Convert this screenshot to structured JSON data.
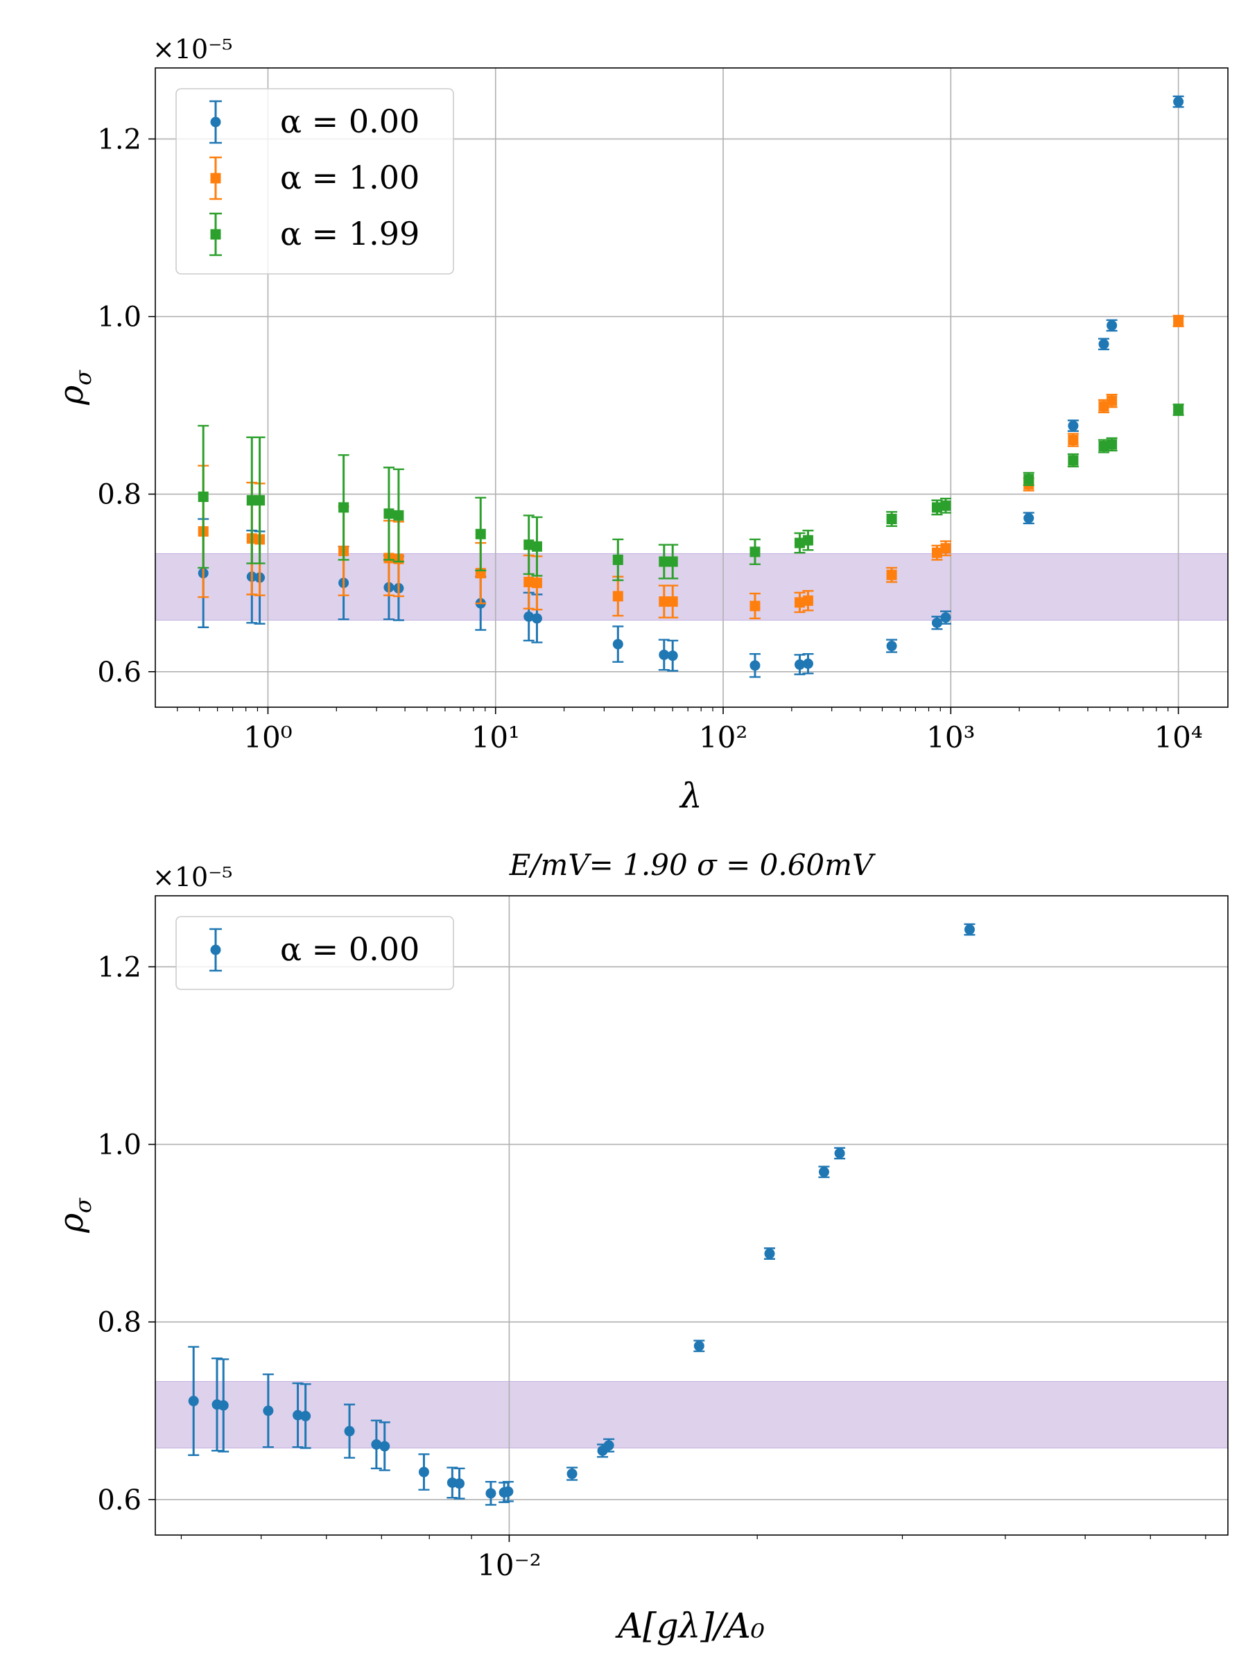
{
  "figure": {
    "panels": [
      {
        "id": "top",
        "multiplier_label": "×10⁻⁵",
        "ylabel_main": "ρ",
        "ylabel_sub": "σ",
        "xlabel": "λ",
        "title": ""
      },
      {
        "id": "bottom",
        "multiplier_label": "×10⁻⁵",
        "ylabel_main": "ρ",
        "ylabel_sub": "σ",
        "xlabel": "A[gλ]/A₀",
        "title": "E/mV= 1.90 σ = 0.60mV"
      }
    ]
  },
  "chart_data": [
    {
      "type": "scatter",
      "x_scale": "log",
      "xlim": [
        0.32,
        16500
      ],
      "ylim": [
        0.56,
        1.28
      ],
      "y_multiplier": "1e-5",
      "x_ticks": [
        {
          "value": 1,
          "label": "10⁰"
        },
        {
          "value": 10,
          "label": "10¹"
        },
        {
          "value": 100,
          "label": "10²"
        },
        {
          "value": 1000,
          "label": "10³"
        },
        {
          "value": 10000,
          "label": "10⁴"
        }
      ],
      "y_ticks": [
        {
          "value": 0.6,
          "label": "0.6"
        },
        {
          "value": 0.8,
          "label": "0.8"
        },
        {
          "value": 1.0,
          "label": "1.0"
        },
        {
          "value": 1.2,
          "label": "1.2"
        }
      ],
      "grid": true,
      "legend_position": "top-left",
      "band": {
        "y0": 0.658,
        "y1": 0.733,
        "color": "#c7b3df"
      },
      "series": [
        {
          "name": "α = 0.00",
          "marker": "circle",
          "color": "#1f77b4",
          "points": [
            {
              "x": 0.52,
              "y": 0.711,
              "err": 0.061
            },
            {
              "x": 0.85,
              "y": 0.707,
              "err": 0.052
            },
            {
              "x": 0.92,
              "y": 0.706,
              "err": 0.052
            },
            {
              "x": 2.15,
              "y": 0.7,
              "err": 0.041
            },
            {
              "x": 3.4,
              "y": 0.695,
              "err": 0.036
            },
            {
              "x": 3.75,
              "y": 0.694,
              "err": 0.036
            },
            {
              "x": 8.6,
              "y": 0.677,
              "err": 0.03
            },
            {
              "x": 14.0,
              "y": 0.662,
              "err": 0.027
            },
            {
              "x": 15.2,
              "y": 0.66,
              "err": 0.027
            },
            {
              "x": 34.5,
              "y": 0.631,
              "err": 0.02
            },
            {
              "x": 55.0,
              "y": 0.619,
              "err": 0.017
            },
            {
              "x": 60.0,
              "y": 0.618,
              "err": 0.017
            },
            {
              "x": 138.0,
              "y": 0.607,
              "err": 0.013
            },
            {
              "x": 217.0,
              "y": 0.608,
              "err": 0.011
            },
            {
              "x": 236.0,
              "y": 0.609,
              "err": 0.011
            },
            {
              "x": 550.0,
              "y": 0.629,
              "err": 0.007
            },
            {
              "x": 870.0,
              "y": 0.655,
              "err": 0.007
            },
            {
              "x": 950.0,
              "y": 0.661,
              "err": 0.007
            },
            {
              "x": 2200.0,
              "y": 0.773,
              "err": 0.006
            },
            {
              "x": 3450.0,
              "y": 0.877,
              "err": 0.006
            },
            {
              "x": 4700.0,
              "y": 0.969,
              "err": 0.006
            },
            {
              "x": 5100.0,
              "y": 0.99,
              "err": 0.006
            },
            {
              "x": 10000.0,
              "y": 1.242,
              "err": 0.006
            }
          ]
        },
        {
          "name": "α = 1.00",
          "marker": "square",
          "color": "#ff7f0e",
          "points": [
            {
              "x": 0.52,
              "y": 0.758,
              "err": 0.074
            },
            {
              "x": 0.85,
              "y": 0.75,
              "err": 0.063
            },
            {
              "x": 0.92,
              "y": 0.749,
              "err": 0.063
            },
            {
              "x": 2.15,
              "y": 0.736,
              "err": 0.05
            },
            {
              "x": 3.4,
              "y": 0.728,
              "err": 0.042
            },
            {
              "x": 3.75,
              "y": 0.727,
              "err": 0.042
            },
            {
              "x": 8.6,
              "y": 0.711,
              "err": 0.034
            },
            {
              "x": 14.0,
              "y": 0.701,
              "err": 0.03
            },
            {
              "x": 15.2,
              "y": 0.7,
              "err": 0.03
            },
            {
              "x": 34.5,
              "y": 0.685,
              "err": 0.022
            },
            {
              "x": 55.0,
              "y": 0.679,
              "err": 0.018
            },
            {
              "x": 60.0,
              "y": 0.679,
              "err": 0.018
            },
            {
              "x": 138.0,
              "y": 0.674,
              "err": 0.014
            },
            {
              "x": 217.0,
              "y": 0.678,
              "err": 0.011
            },
            {
              "x": 236.0,
              "y": 0.68,
              "err": 0.011
            },
            {
              "x": 550.0,
              "y": 0.709,
              "err": 0.008
            },
            {
              "x": 870.0,
              "y": 0.734,
              "err": 0.008
            },
            {
              "x": 950.0,
              "y": 0.739,
              "err": 0.008
            },
            {
              "x": 2200.0,
              "y": 0.811,
              "err": 0.007
            },
            {
              "x": 3450.0,
              "y": 0.861,
              "err": 0.007
            },
            {
              "x": 4700.0,
              "y": 0.899,
              "err": 0.007
            },
            {
              "x": 5100.0,
              "y": 0.905,
              "err": 0.007
            },
            {
              "x": 10000.0,
              "y": 0.995,
              "err": 0.006
            }
          ]
        },
        {
          "name": "α = 1.99",
          "marker": "square",
          "color": "#2ca02c",
          "points": [
            {
              "x": 0.52,
              "y": 0.797,
              "err": 0.08
            },
            {
              "x": 0.85,
              "y": 0.793,
              "err": 0.071
            },
            {
              "x": 0.92,
              "y": 0.793,
              "err": 0.071
            },
            {
              "x": 2.15,
              "y": 0.785,
              "err": 0.059
            },
            {
              "x": 3.4,
              "y": 0.778,
              "err": 0.052
            },
            {
              "x": 3.75,
              "y": 0.776,
              "err": 0.052
            },
            {
              "x": 8.6,
              "y": 0.755,
              "err": 0.041
            },
            {
              "x": 14.0,
              "y": 0.743,
              "err": 0.033
            },
            {
              "x": 15.2,
              "y": 0.741,
              "err": 0.033
            },
            {
              "x": 34.5,
              "y": 0.726,
              "err": 0.023
            },
            {
              "x": 55.0,
              "y": 0.724,
              "err": 0.019
            },
            {
              "x": 60.0,
              "y": 0.724,
              "err": 0.019
            },
            {
              "x": 138.0,
              "y": 0.735,
              "err": 0.014
            },
            {
              "x": 217.0,
              "y": 0.745,
              "err": 0.011
            },
            {
              "x": 236.0,
              "y": 0.748,
              "err": 0.011
            },
            {
              "x": 550.0,
              "y": 0.772,
              "err": 0.008
            },
            {
              "x": 870.0,
              "y": 0.785,
              "err": 0.008
            },
            {
              "x": 950.0,
              "y": 0.787,
              "err": 0.008
            },
            {
              "x": 2200.0,
              "y": 0.817,
              "err": 0.007
            },
            {
              "x": 3450.0,
              "y": 0.838,
              "err": 0.007
            },
            {
              "x": 4700.0,
              "y": 0.854,
              "err": 0.007
            },
            {
              "x": 5100.0,
              "y": 0.856,
              "err": 0.007
            },
            {
              "x": 10000.0,
              "y": 0.895,
              "err": 0.006
            }
          ]
        }
      ]
    },
    {
      "type": "scatter",
      "x_scale": "log",
      "xlim": [
        0.00372,
        0.0745
      ],
      "ylim": [
        0.56,
        1.28
      ],
      "y_multiplier": "1e-5",
      "x_ticks": [
        {
          "value": 0.01,
          "label": "10⁻²"
        }
      ],
      "x_minor_ticks": [
        0.004,
        0.005,
        0.006,
        0.007,
        0.008,
        0.009,
        0.02,
        0.03,
        0.04,
        0.05,
        0.06,
        0.07
      ],
      "y_ticks": [
        {
          "value": 0.6,
          "label": "0.6"
        },
        {
          "value": 0.8,
          "label": "0.8"
        },
        {
          "value": 1.0,
          "label": "1.0"
        },
        {
          "value": 1.2,
          "label": "1.2"
        }
      ],
      "grid": true,
      "legend_position": "top-left",
      "band": {
        "y0": 0.658,
        "y1": 0.733,
        "color": "#c7b3df"
      },
      "series": [
        {
          "name": "α = 0.00",
          "marker": "circle",
          "color": "#1f77b4",
          "points": [
            {
              "x": 0.00414,
              "y": 0.711,
              "err": 0.061
            },
            {
              "x": 0.00442,
              "y": 0.707,
              "err": 0.052
            },
            {
              "x": 0.0045,
              "y": 0.706,
              "err": 0.052
            },
            {
              "x": 0.0051,
              "y": 0.7,
              "err": 0.041
            },
            {
              "x": 0.00554,
              "y": 0.695,
              "err": 0.036
            },
            {
              "x": 0.00566,
              "y": 0.694,
              "err": 0.036
            },
            {
              "x": 0.0064,
              "y": 0.677,
              "err": 0.03
            },
            {
              "x": 0.0069,
              "y": 0.662,
              "err": 0.027
            },
            {
              "x": 0.00706,
              "y": 0.66,
              "err": 0.027
            },
            {
              "x": 0.00788,
              "y": 0.631,
              "err": 0.02
            },
            {
              "x": 0.00853,
              "y": 0.619,
              "err": 0.017
            },
            {
              "x": 0.0087,
              "y": 0.618,
              "err": 0.017
            },
            {
              "x": 0.0095,
              "y": 0.607,
              "err": 0.013
            },
            {
              "x": 0.00986,
              "y": 0.608,
              "err": 0.011
            },
            {
              "x": 0.00997,
              "y": 0.609,
              "err": 0.011
            },
            {
              "x": 0.01192,
              "y": 0.629,
              "err": 0.007
            },
            {
              "x": 0.01298,
              "y": 0.655,
              "err": 0.007
            },
            {
              "x": 0.01321,
              "y": 0.661,
              "err": 0.007
            },
            {
              "x": 0.017,
              "y": 0.773,
              "err": 0.006
            },
            {
              "x": 0.0207,
              "y": 0.877,
              "err": 0.006
            },
            {
              "x": 0.0241,
              "y": 0.969,
              "err": 0.006
            },
            {
              "x": 0.02518,
              "y": 0.99,
              "err": 0.006
            },
            {
              "x": 0.0362,
              "y": 1.242,
              "err": 0.006
            }
          ]
        }
      ]
    }
  ]
}
